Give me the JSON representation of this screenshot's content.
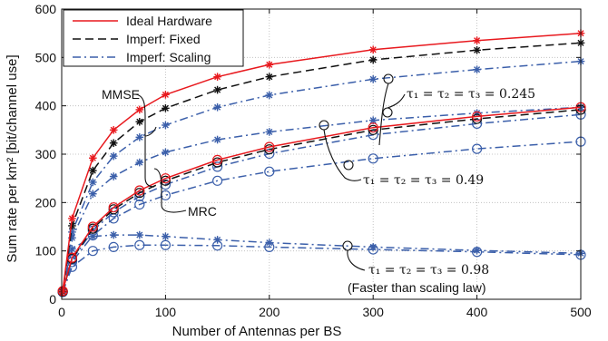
{
  "chart_data": {
    "type": "line",
    "xlabel": "Number of Antennas per BS",
    "ylabel": "Sum rate per km² [bit/channel use]",
    "xlim": [
      0,
      500
    ],
    "ylim": [
      0,
      600
    ],
    "xticks": [
      0,
      100,
      200,
      300,
      400,
      500
    ],
    "yticks": [
      0,
      100,
      200,
      300,
      400,
      500,
      600
    ],
    "grid": true,
    "legend_position": "top-left",
    "legend": [
      {
        "label": "Ideal Hardware",
        "color": "#e8191e",
        "dash": "solid"
      },
      {
        "label": "Imperf: Fixed",
        "color": "#111111",
        "dash": "dashed"
      },
      {
        "label": "Imperf: Scaling",
        "color": "#3b5faa",
        "dash": "dashdot"
      }
    ],
    "annotations": {
      "mmse": "MMSE",
      "mrc": "MRC",
      "tau_245": "τ₁ = τ₂ = τ₃ = 0.245",
      "tau_49": "τ₁ = τ₂ = τ₃ = 0.49",
      "tau_98": "τ₁ = τ₂ = τ₃ = 0.98",
      "faster": "(Faster than scaling law)"
    },
    "series": [
      {
        "name": "Ideal Hardware",
        "receiver": "MMSE",
        "color": "#e8191e",
        "dash": "solid",
        "marker": "star",
        "x": [
          1,
          10,
          30,
          50,
          75,
          100,
          150,
          200,
          300,
          400,
          500
        ],
        "y": [
          17,
          167,
          292,
          350,
          392,
          423,
          460,
          485,
          516,
          535,
          550
        ]
      },
      {
        "name": "Imperf: Fixed",
        "receiver": "MMSE",
        "color": "#111111",
        "dash": "dashed",
        "marker": "star",
        "x": [
          1,
          10,
          30,
          50,
          75,
          100,
          150,
          200,
          300,
          400,
          500
        ],
        "y": [
          16,
          152,
          266,
          323,
          367,
          395,
          433,
          460,
          495,
          515,
          530
        ]
      },
      {
        "name": "Imperf: Scaling 0.245",
        "receiver": "MMSE",
        "color": "#3b5faa",
        "dash": "dashdot",
        "marker": "star",
        "x": [
          1,
          10,
          30,
          50,
          75,
          100,
          150,
          200,
          300,
          400,
          500
        ],
        "y": [
          15,
          139,
          242,
          296,
          335,
          360,
          397,
          422,
          455,
          475,
          492
        ]
      },
      {
        "name": "Imperf: Scaling 0.49",
        "receiver": "MMSE",
        "color": "#3b5faa",
        "dash": "dashdot",
        "marker": "star",
        "x": [
          1,
          10,
          30,
          50,
          75,
          100,
          150,
          200,
          300,
          400,
          500
        ],
        "y": [
          15,
          127,
          218,
          254,
          283,
          304,
          330,
          346,
          370,
          385,
          397
        ]
      },
      {
        "name": "Imperf: Scaling 0.98",
        "receiver": "MMSE",
        "color": "#3b5faa",
        "dash": "dashdot",
        "marker": "star",
        "x": [
          1,
          10,
          30,
          50,
          75,
          100,
          150,
          200,
          300,
          400,
          500
        ],
        "y": [
          15,
          104,
          130,
          133,
          133,
          130,
          123,
          117,
          108,
          101,
          95
        ]
      },
      {
        "name": "Ideal Hardware",
        "receiver": "MRC",
        "color": "#e8191e",
        "dash": "solid",
        "marker": "circle",
        "x": [
          1,
          10,
          30,
          50,
          75,
          100,
          150,
          200,
          300,
          400,
          500
        ],
        "y": [
          17,
          86,
          150,
          190,
          225,
          250,
          288,
          315,
          355,
          378,
          397
        ]
      },
      {
        "name": "Imperf: Fixed",
        "receiver": "MRC",
        "color": "#111111",
        "dash": "dashed",
        "marker": "circle",
        "x": [
          1,
          10,
          30,
          50,
          75,
          100,
          150,
          200,
          300,
          400,
          500
        ],
        "y": [
          16,
          84,
          146,
          186,
          220,
          245,
          283,
          310,
          350,
          373,
          392
        ]
      },
      {
        "name": "Imperf: Scaling 0.245",
        "receiver": "MRC",
        "color": "#3b5faa",
        "dash": "dashdot",
        "marker": "circle",
        "x": [
          1,
          10,
          30,
          50,
          75,
          100,
          150,
          200,
          300,
          400,
          500
        ],
        "y": [
          16,
          82,
          142,
          180,
          213,
          237,
          274,
          301,
          340,
          363,
          382
        ]
      },
      {
        "name": "Imperf: Scaling 0.49",
        "receiver": "MRC",
        "color": "#3b5faa",
        "dash": "dashdot",
        "marker": "circle",
        "x": [
          1,
          10,
          30,
          50,
          75,
          100,
          150,
          200,
          300,
          400,
          500
        ],
        "y": [
          15,
          77,
          132,
          167,
          196,
          215,
          245,
          264,
          291,
          311,
          326
        ]
      },
      {
        "name": "Imperf: Scaling 0.98",
        "receiver": "MRC",
        "color": "#3b5faa",
        "dash": "dashdot",
        "marker": "circle",
        "x": [
          1,
          10,
          30,
          50,
          75,
          100,
          150,
          200,
          300,
          400,
          500
        ],
        "y": [
          15,
          67,
          100,
          108,
          112,
          112,
          111,
          108,
          103,
          98,
          92
        ]
      }
    ]
  }
}
